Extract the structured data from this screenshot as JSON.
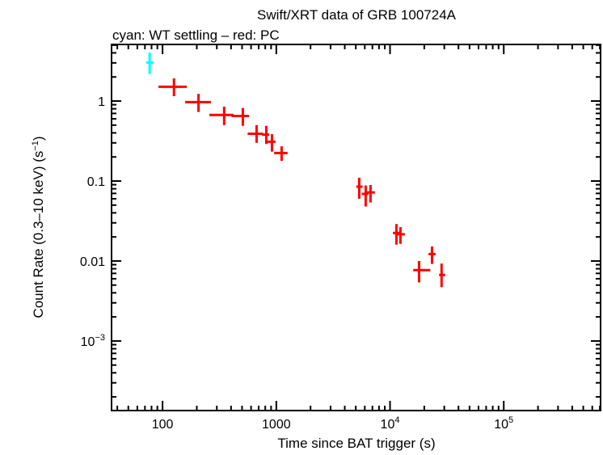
{
  "chart_data": {
    "type": "scatter",
    "title": "Swift/XRT data of GRB 100724A",
    "subtitle": "cyan: WT settling – red: PC",
    "xlabel": "Time since BAT trigger (s)",
    "ylabel": "Count Rate (0.3–10 keV) (s",
    "ylabel_sup": "−1",
    "ylabel_tail": ")",
    "xscale": "log",
    "yscale": "log",
    "xlim": [
      35.6,
      710000
    ],
    "ylim": [
      0.000135,
      5.1
    ],
    "grid": false,
    "x_ticks": [
      {
        "value": 100,
        "base": "100",
        "sup": ""
      },
      {
        "value": 1000,
        "base": "1000",
        "sup": ""
      },
      {
        "value": 10000,
        "base": "10",
        "sup": "4"
      },
      {
        "value": 100000,
        "base": "10",
        "sup": "5"
      }
    ],
    "y_ticks": [
      {
        "value": 1,
        "base": "1",
        "sup": ""
      },
      {
        "value": 0.1,
        "base": "0.1",
        "sup": ""
      },
      {
        "value": 0.01,
        "base": "0.01",
        "sup": ""
      },
      {
        "value": 0.001,
        "base": "10",
        "sup": "−3"
      }
    ],
    "series": [
      {
        "mode": "WT settling",
        "color": "#00ffff",
        "points": [
          {
            "x": 77,
            "xlo": 72,
            "xhi": 83,
            "y": 3.03,
            "ylo": 2.17,
            "yhi": 4.04
          }
        ]
      },
      {
        "mode": "PC",
        "color": "#ff0000",
        "points": [
          {
            "x": 126,
            "xlo": 92,
            "xhi": 163,
            "y": 1.51,
            "ylo": 1.15,
            "yhi": 1.92
          },
          {
            "x": 207,
            "xlo": 158,
            "xhi": 266,
            "y": 0.97,
            "ylo": 0.73,
            "yhi": 1.23
          },
          {
            "x": 348,
            "xlo": 258,
            "xhi": 420,
            "y": 0.67,
            "ylo": 0.5,
            "yhi": 0.85
          },
          {
            "x": 508,
            "xlo": 404,
            "xhi": 575,
            "y": 0.65,
            "ylo": 0.49,
            "yhi": 0.82
          },
          {
            "x": 671,
            "xlo": 560,
            "xhi": 764,
            "y": 0.39,
            "ylo": 0.3,
            "yhi": 0.5
          },
          {
            "x": 817,
            "xlo": 748,
            "xhi": 867,
            "y": 0.38,
            "ylo": 0.29,
            "yhi": 0.49
          },
          {
            "x": 916,
            "xlo": 836,
            "xhi": 985,
            "y": 0.31,
            "ylo": 0.233,
            "yhi": 0.385
          },
          {
            "x": 1114,
            "xlo": 957,
            "xhi": 1257,
            "y": 0.224,
            "ylo": 0.179,
            "yhi": 0.272
          },
          {
            "x": 5360,
            "xlo": 5060,
            "xhi": 5730,
            "y": 0.085,
            "ylo": 0.06,
            "yhi": 0.11
          },
          {
            "x": 6110,
            "xlo": 5640,
            "xhi": 6460,
            "y": 0.069,
            "ylo": 0.048,
            "yhi": 0.088
          },
          {
            "x": 6740,
            "xlo": 6210,
            "xhi": 7360,
            "y": 0.072,
            "ylo": 0.054,
            "yhi": 0.089
          },
          {
            "x": 11380,
            "xlo": 10600,
            "xhi": 12100,
            "y": 0.0224,
            "ylo": 0.016,
            "yhi": 0.029
          },
          {
            "x": 12350,
            "xlo": 11460,
            "xhi": 13490,
            "y": 0.0216,
            "ylo": 0.0164,
            "yhi": 0.0265
          },
          {
            "x": 18000,
            "xlo": 16000,
            "xhi": 22600,
            "y": 0.0077,
            "ylo": 0.0054,
            "yhi": 0.01
          },
          {
            "x": 23400,
            "xlo": 21800,
            "xhi": 25100,
            "y": 0.0122,
            "ylo": 0.0092,
            "yhi": 0.0152
          },
          {
            "x": 28400,
            "xlo": 27000,
            "xhi": 30500,
            "y": 0.0067,
            "ylo": 0.0047,
            "yhi": 0.0093
          }
        ]
      }
    ]
  }
}
